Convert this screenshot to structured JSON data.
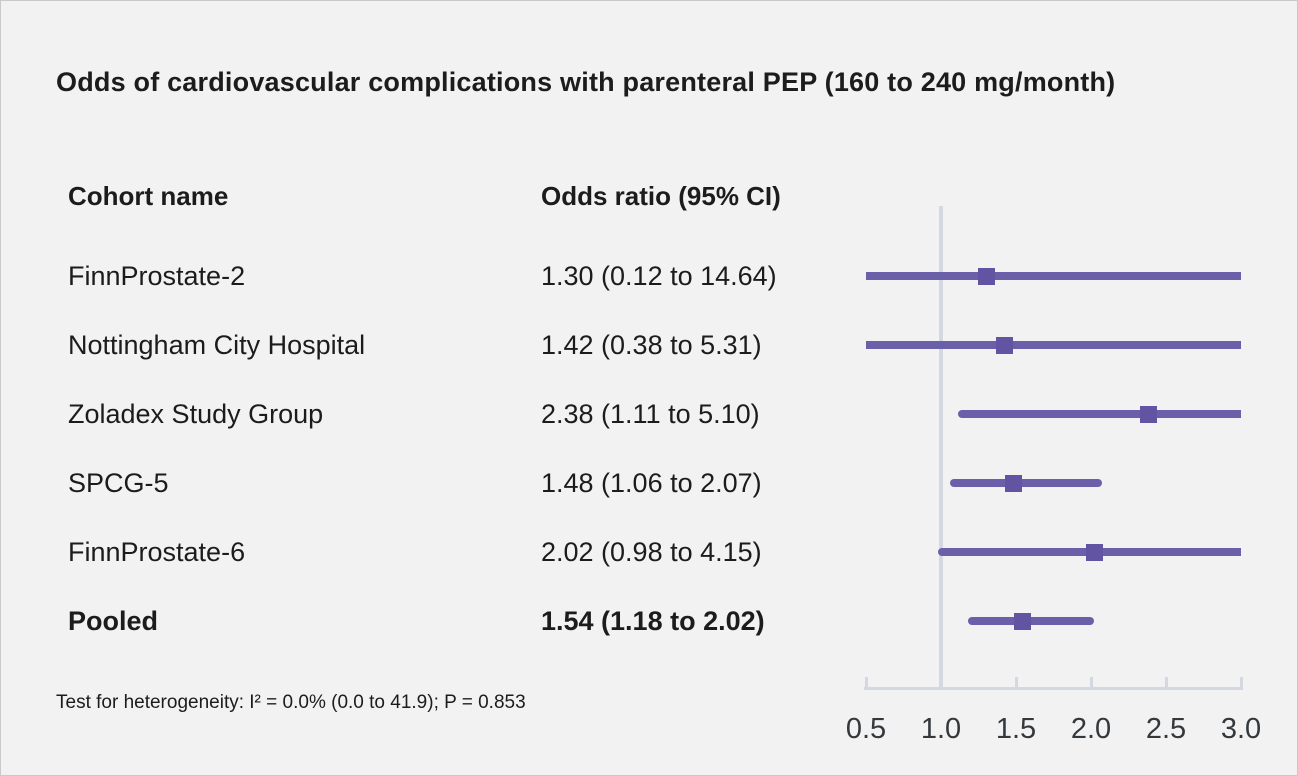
{
  "title": "Odds of cardiovascular complications with parenteral PEP (160 to 240 mg/month)",
  "table": {
    "col_cohort": "Cohort name",
    "col_odds": "Odds ratio (95% CI)"
  },
  "footer": "Test for heterogeneity: I² = 0.0% (0.0 to 41.9); P = 0.853",
  "chart_data": {
    "type": "forest",
    "title": "Odds of cardiovascular complications with parenteral PEP (160 to 240 mg/month)",
    "x_ticks": [
      0.5,
      1.0,
      1.5,
      2.0,
      2.5,
      3.0
    ],
    "x_range": [
      0.5,
      3.0
    ],
    "reference_line": 1.0,
    "rows": [
      {
        "name": "FinnProstate-2",
        "or_text": "1.30 (0.12 to 14.64)",
        "or": 1.3,
        "ci_low": 0.12,
        "ci_high": 14.64,
        "bold": false
      },
      {
        "name": "Nottingham City Hospital",
        "or_text": "1.42 (0.38 to 5.31)",
        "or": 1.42,
        "ci_low": 0.38,
        "ci_high": 5.31,
        "bold": false
      },
      {
        "name": "Zoladex Study Group",
        "or_text": "2.38 (1.11 to 5.10)",
        "or": 2.38,
        "ci_low": 1.11,
        "ci_high": 5.1,
        "bold": false
      },
      {
        "name": "SPCG-5",
        "or_text": "1.48 (1.06 to 2.07)",
        "or": 1.48,
        "ci_low": 1.06,
        "ci_high": 2.07,
        "bold": false
      },
      {
        "name": "FinnProstate-6",
        "or_text": "2.02 (0.98 to 4.15)",
        "or": 2.02,
        "ci_low": 0.98,
        "ci_high": 4.15,
        "bold": false
      },
      {
        "name": "Pooled",
        "or_text": "1.54 (1.18 to 2.02)",
        "or": 1.54,
        "ci_low": 1.18,
        "ci_high": 2.02,
        "bold": true
      }
    ],
    "colors": {
      "ci_line": "#6c5fa9",
      "marker": "#6254a3",
      "axis": "#d4d9e1",
      "background": "#f2f2f2"
    }
  }
}
